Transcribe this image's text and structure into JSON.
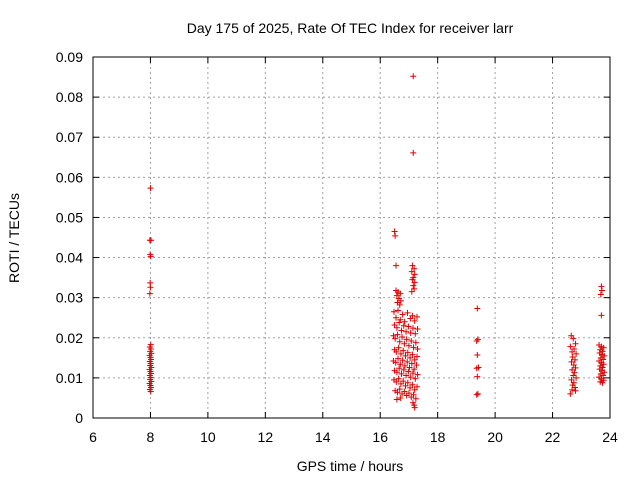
{
  "chart_data": {
    "type": "scatter",
    "title": "Day 175 of 2025, Rate Of TEC Index for receiver larr",
    "xlabel": "GPS time / hours",
    "ylabel": "ROTI / TECUs",
    "xlim": [
      6,
      24
    ],
    "ylim": [
      0,
      0.09
    ],
    "x_ticks": [
      "6",
      "8",
      "10",
      "12",
      "14",
      "16",
      "18",
      "20",
      "22",
      "24"
    ],
    "y_ticks": [
      "0",
      "0.01",
      "0.02",
      "0.03",
      "0.04",
      "0.05",
      "0.06",
      "0.07",
      "0.08",
      "0.09"
    ],
    "grid": true,
    "marker": "+",
    "marker_color": "#e00000",
    "series": [
      {
        "points": [
          [
            8.0,
            0.0573
          ],
          [
            7.98,
            0.0443
          ],
          [
            8.02,
            0.0443
          ],
          [
            7.99,
            0.0408
          ],
          [
            8.01,
            0.0403
          ],
          [
            7.99,
            0.0337
          ],
          [
            8.0,
            0.0326
          ],
          [
            7.98,
            0.031
          ],
          [
            8.01,
            0.0183
          ],
          [
            7.98,
            0.0177
          ],
          [
            8.02,
            0.0172
          ],
          [
            7.99,
            0.0166
          ],
          [
            8.03,
            0.0161
          ],
          [
            7.97,
            0.0156
          ],
          [
            8.0,
            0.0151
          ],
          [
            8.02,
            0.0146
          ],
          [
            7.98,
            0.0141
          ],
          [
            8.01,
            0.0136
          ],
          [
            7.99,
            0.0131
          ],
          [
            8.03,
            0.0126
          ],
          [
            7.97,
            0.0121
          ],
          [
            8.0,
            0.0116
          ],
          [
            8.02,
            0.0111
          ],
          [
            7.98,
            0.0106
          ],
          [
            8.01,
            0.0101
          ],
          [
            7.99,
            0.0096
          ],
          [
            8.03,
            0.0091
          ],
          [
            7.97,
            0.0086
          ],
          [
            8.0,
            0.0081
          ],
          [
            8.02,
            0.0076
          ],
          [
            7.98,
            0.0071
          ],
          [
            8.01,
            0.0066
          ],
          [
            17.15,
            0.0852
          ],
          [
            17.15,
            0.0661
          ],
          [
            16.5,
            0.0465
          ],
          [
            16.52,
            0.0454
          ],
          [
            16.55,
            0.038
          ],
          [
            17.12,
            0.038
          ],
          [
            17.18,
            0.0372
          ],
          [
            17.1,
            0.0365
          ],
          [
            17.2,
            0.0358
          ],
          [
            17.15,
            0.035
          ],
          [
            17.12,
            0.0345
          ],
          [
            17.2,
            0.0338
          ],
          [
            17.15,
            0.033
          ],
          [
            17.18,
            0.0322
          ],
          [
            17.1,
            0.0315
          ],
          [
            16.55,
            0.0318
          ],
          [
            16.62,
            0.0314
          ],
          [
            16.7,
            0.031
          ],
          [
            16.58,
            0.0305
          ],
          [
            16.65,
            0.0298
          ],
          [
            16.72,
            0.0292
          ],
          [
            16.6,
            0.0288
          ],
          [
            16.68,
            0.0282
          ],
          [
            16.48,
            0.0265
          ],
          [
            16.55,
            0.025
          ],
          [
            16.62,
            0.0268
          ],
          [
            16.7,
            0.0245
          ],
          [
            16.78,
            0.0258
          ],
          [
            16.85,
            0.024
          ],
          [
            16.95,
            0.0262
          ],
          [
            17.05,
            0.0248
          ],
          [
            17.12,
            0.0255
          ],
          [
            17.2,
            0.0242
          ],
          [
            17.28,
            0.0252
          ],
          [
            16.5,
            0.0232
          ],
          [
            16.58,
            0.0225
          ],
          [
            16.66,
            0.0238
          ],
          [
            16.74,
            0.0218
          ],
          [
            16.82,
            0.023
          ],
          [
            16.9,
            0.0215
          ],
          [
            16.98,
            0.0228
          ],
          [
            17.06,
            0.0212
          ],
          [
            17.14,
            0.0224
          ],
          [
            17.22,
            0.021
          ],
          [
            17.3,
            0.0222
          ],
          [
            16.46,
            0.0205
          ],
          [
            16.52,
            0.0198
          ],
          [
            16.6,
            0.0208
          ],
          [
            16.68,
            0.019
          ],
          [
            16.76,
            0.0202
          ],
          [
            16.84,
            0.0185
          ],
          [
            16.92,
            0.0196
          ],
          [
            17.0,
            0.018
          ],
          [
            17.08,
            0.0192
          ],
          [
            17.16,
            0.0176
          ],
          [
            17.24,
            0.0188
          ],
          [
            17.3,
            0.0172
          ],
          [
            16.5,
            0.017
          ],
          [
            16.56,
            0.0165
          ],
          [
            16.64,
            0.0175
          ],
          [
            16.72,
            0.016
          ],
          [
            16.8,
            0.0168
          ],
          [
            16.88,
            0.0155
          ],
          [
            16.96,
            0.0163
          ],
          [
            17.04,
            0.015
          ],
          [
            17.12,
            0.0158
          ],
          [
            17.2,
            0.0145
          ],
          [
            17.28,
            0.0153
          ],
          [
            16.46,
            0.0142
          ],
          [
            16.54,
            0.0138
          ],
          [
            16.62,
            0.0148
          ],
          [
            16.7,
            0.0134
          ],
          [
            16.78,
            0.0144
          ],
          [
            16.86,
            0.013
          ],
          [
            16.94,
            0.014
          ],
          [
            17.02,
            0.0126
          ],
          [
            17.1,
            0.0136
          ],
          [
            17.18,
            0.0122
          ],
          [
            17.26,
            0.0132
          ],
          [
            16.5,
            0.0118
          ],
          [
            16.58,
            0.0114
          ],
          [
            16.66,
            0.0124
          ],
          [
            16.74,
            0.011
          ],
          [
            16.82,
            0.012
          ],
          [
            16.9,
            0.0106
          ],
          [
            16.98,
            0.0116
          ],
          [
            17.06,
            0.0102
          ],
          [
            17.14,
            0.0112
          ],
          [
            17.22,
            0.0098
          ],
          [
            17.3,
            0.0108
          ],
          [
            16.48,
            0.0095
          ],
          [
            16.56,
            0.009
          ],
          [
            16.64,
            0.0098
          ],
          [
            16.72,
            0.0085
          ],
          [
            16.8,
            0.0092
          ],
          [
            16.88,
            0.008
          ],
          [
            16.96,
            0.0088
          ],
          [
            17.04,
            0.0075
          ],
          [
            17.12,
            0.0083
          ],
          [
            17.2,
            0.007
          ],
          [
            17.28,
            0.0078
          ],
          [
            16.52,
            0.0068
          ],
          [
            16.6,
            0.0064
          ],
          [
            16.68,
            0.0072
          ],
          [
            16.76,
            0.006
          ],
          [
            16.84,
            0.0066
          ],
          [
            16.92,
            0.0056
          ],
          [
            17.0,
            0.0062
          ],
          [
            17.08,
            0.0052
          ],
          [
            17.16,
            0.0058
          ],
          [
            17.24,
            0.0048
          ],
          [
            16.58,
            0.0046
          ],
          [
            16.7,
            0.005
          ],
          [
            17.14,
            0.0038
          ],
          [
            17.18,
            0.0032
          ],
          [
            17.2,
            0.0026
          ],
          [
            19.38,
            0.0273
          ],
          [
            19.4,
            0.0196
          ],
          [
            19.36,
            0.0192
          ],
          [
            19.38,
            0.0157
          ],
          [
            19.42,
            0.0126
          ],
          [
            19.36,
            0.0124
          ],
          [
            19.38,
            0.0103
          ],
          [
            19.4,
            0.006
          ],
          [
            19.36,
            0.0058
          ],
          [
            22.65,
            0.0205
          ],
          [
            22.72,
            0.0198
          ],
          [
            22.8,
            0.0185
          ],
          [
            22.62,
            0.0178
          ],
          [
            22.75,
            0.0172
          ],
          [
            22.68,
            0.0165
          ],
          [
            22.82,
            0.016
          ],
          [
            22.7,
            0.0152
          ],
          [
            22.78,
            0.0145
          ],
          [
            22.66,
            0.014
          ],
          [
            22.74,
            0.0132
          ],
          [
            22.8,
            0.0125
          ],
          [
            22.68,
            0.012
          ],
          [
            22.76,
            0.0113
          ],
          [
            22.72,
            0.0106
          ],
          [
            22.82,
            0.01
          ],
          [
            22.66,
            0.0095
          ],
          [
            22.74,
            0.0088
          ],
          [
            22.7,
            0.0082
          ],
          [
            22.78,
            0.0076
          ],
          [
            22.68,
            0.007
          ],
          [
            22.62,
            0.006
          ],
          [
            22.8,
            0.0068
          ],
          [
            23.7,
            0.0328
          ],
          [
            23.72,
            0.0318
          ],
          [
            23.68,
            0.0308
          ],
          [
            23.7,
            0.0256
          ],
          [
            23.62,
            0.0182
          ],
          [
            23.7,
            0.0178
          ],
          [
            23.78,
            0.0175
          ],
          [
            23.66,
            0.017
          ],
          [
            23.74,
            0.0166
          ],
          [
            23.64,
            0.0162
          ],
          [
            23.72,
            0.0158
          ],
          [
            23.8,
            0.0155
          ],
          [
            23.68,
            0.015
          ],
          [
            23.76,
            0.0146
          ],
          [
            23.62,
            0.0142
          ],
          [
            23.7,
            0.0138
          ],
          [
            23.78,
            0.0134
          ],
          [
            23.66,
            0.013
          ],
          [
            23.74,
            0.0126
          ],
          [
            23.64,
            0.0122
          ],
          [
            23.72,
            0.0118
          ],
          [
            23.8,
            0.0114
          ],
          [
            23.68,
            0.011
          ],
          [
            23.76,
            0.0106
          ],
          [
            23.62,
            0.0102
          ],
          [
            23.7,
            0.0098
          ],
          [
            23.78,
            0.0094
          ],
          [
            23.66,
            0.009
          ],
          [
            23.74,
            0.0088
          ]
        ]
      }
    ]
  }
}
